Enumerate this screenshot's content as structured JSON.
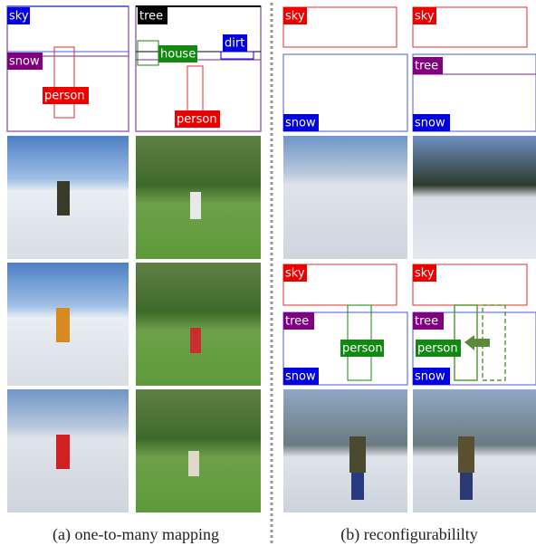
{
  "left": {
    "caption": "(a) one-to-many mapping",
    "layouts": [
      {
        "labels": [
          "sky",
          "snow",
          "person"
        ]
      },
      {
        "labels": [
          "tree",
          "house",
          "dirt",
          "person"
        ]
      }
    ]
  },
  "right": {
    "caption": "(b) reconfigurabililty",
    "layouts": [
      {
        "labels": [
          "sky",
          "snow"
        ]
      },
      {
        "labels": [
          "sky",
          "tree",
          "snow"
        ]
      },
      {
        "labels": [
          "sky",
          "tree",
          "person",
          "snow"
        ]
      },
      {
        "labels": [
          "sky",
          "tree",
          "person",
          "snow"
        ]
      }
    ]
  }
}
